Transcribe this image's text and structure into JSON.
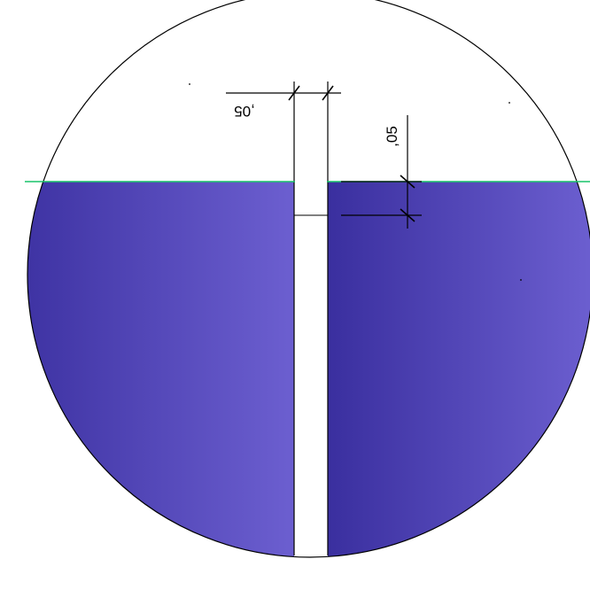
{
  "drawing": {
    "dimensions": [
      {
        "label": ",05"
      },
      {
        "label": ",05"
      }
    ],
    "colors": {
      "fill_start": "#3a2f9f",
      "fill_end": "#6c5fd0",
      "reference_line": "#19c46a",
      "outline": "#000000",
      "background": "#ffffff"
    }
  }
}
